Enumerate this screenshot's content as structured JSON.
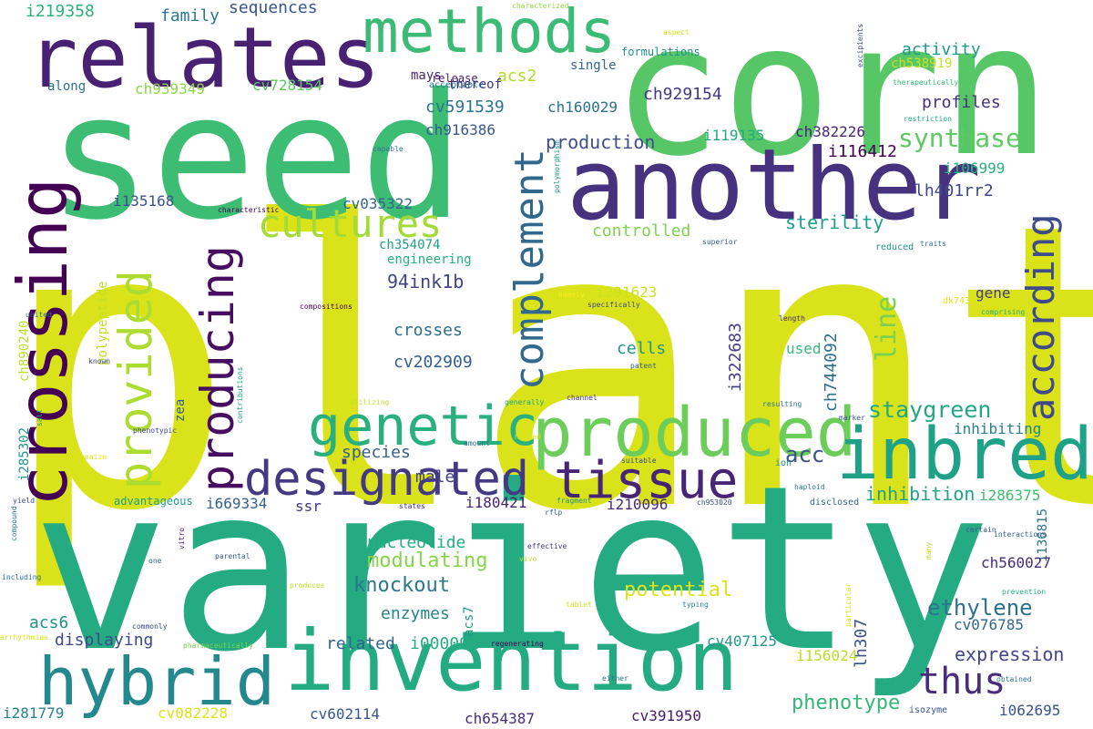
{
  "words": [
    {
      "text": "plant",
      "color": "#dae319"
    },
    {
      "text": "variety",
      "color": "#25ab82"
    },
    {
      "text": "seed",
      "color": "#3dbc74"
    },
    {
      "text": "corn",
      "color": "#56c667"
    },
    {
      "text": "relates",
      "color": "#482173"
    },
    {
      "text": "another",
      "color": "#46327e"
    },
    {
      "text": "methods",
      "color": "#3bbb75"
    },
    {
      "text": "invention",
      "color": "#25ab82"
    },
    {
      "text": "produced",
      "color": "#6ccd5a"
    },
    {
      "text": "inbred",
      "color": "#1fa188"
    },
    {
      "text": "crossing",
      "color": "#440154"
    },
    {
      "text": "hybrid",
      "color": "#23898e"
    },
    {
      "text": "designated",
      "color": "#443a83"
    },
    {
      "text": "tissue",
      "color": "#482475"
    },
    {
      "text": "genetic",
      "color": "#2ab07f"
    },
    {
      "text": "producing",
      "color": "#470d60"
    },
    {
      "text": "provided",
      "color": "#addc30"
    },
    {
      "text": "complement",
      "color": "#31688e"
    },
    {
      "text": "according",
      "color": "#3e4a89"
    },
    {
      "text": "cultures",
      "color": "#a2da37"
    },
    {
      "text": "thus",
      "color": "#472d7b"
    },
    {
      "text": "line",
      "color": "#7ad151"
    },
    {
      "text": "ethylene",
      "color": "#2c728e"
    },
    {
      "text": "acc",
      "color": "#3b528b"
    },
    {
      "text": "synthase",
      "color": "#5ec962"
    },
    {
      "text": "staygreen",
      "color": "#22a884"
    },
    {
      "text": "phenotype",
      "color": "#35b779"
    },
    {
      "text": "potential",
      "color": "#dde318"
    },
    {
      "text": "modulating",
      "color": "#86d549"
    },
    {
      "text": "knockout",
      "color": "#2a788e"
    },
    {
      "text": "expression",
      "color": "#414487"
    },
    {
      "text": "inhibition",
      "color": "#20a386"
    },
    {
      "text": "production",
      "color": "#3e4c8a"
    },
    {
      "text": "94ink1b",
      "color": "#404588"
    },
    {
      "text": "sterility",
      "color": "#1f9e89"
    },
    {
      "text": "profiles",
      "color": "#46307e"
    },
    {
      "text": "ch744092",
      "color": "#2d708e"
    },
    {
      "text": "i322683",
      "color": "#433d84"
    },
    {
      "text": "lh307",
      "color": "#3b528b"
    },
    {
      "text": "i136815",
      "color": "#2c738e"
    },
    {
      "text": "ch890240",
      "color": "#bade28"
    },
    {
      "text": "i285302",
      "color": "#1f968b"
    },
    {
      "text": "polypeptide",
      "color": "#c2df23"
    },
    {
      "text": "acs7",
      "color": "#1f9a8a"
    },
    {
      "text": "lh401rr2",
      "color": "#3f4889"
    },
    {
      "text": "zea",
      "color": "#365c8d"
    },
    {
      "text": "nucleotide",
      "color": "#26ad81"
    },
    {
      "text": "controlled",
      "color": "#7fd34e"
    },
    {
      "text": "engineering",
      "color": "#29af7f"
    },
    {
      "text": "cells",
      "color": "#1f958b"
    },
    {
      "text": "crosses",
      "color": "#2f6c8e"
    },
    {
      "text": "cv202909",
      "color": "#355f8d"
    },
    {
      "text": "species",
      "color": "#355e8d"
    },
    {
      "text": "male",
      "color": "#424086"
    },
    {
      "text": "related",
      "color": "#32648e"
    },
    {
      "text": "i000091",
      "color": "#25ac82"
    },
    {
      "text": "enzymes",
      "color": "#25838e"
    },
    {
      "text": "displaying",
      "color": "#3e4989"
    },
    {
      "text": "acs6",
      "color": "#20928c"
    },
    {
      "text": "sequences",
      "color": "#39558c"
    },
    {
      "text": "family",
      "color": "#2a788e"
    },
    {
      "text": "i219358",
      "color": "#2db27d"
    },
    {
      "text": "mays",
      "color": "#482979"
    },
    {
      "text": "acs2",
      "color": "#b0dd2f"
    },
    {
      "text": "thereof",
      "color": "#463480"
    },
    {
      "text": "formulations",
      "color": "#21918c"
    },
    {
      "text": "ch929154",
      "color": "#453882"
    },
    {
      "text": "activity",
      "color": "#1f9a8a"
    },
    {
      "text": "ch538919",
      "color": "#c8e020"
    },
    {
      "text": "cv728154",
      "color": "#5ac864"
    },
    {
      "text": "ch939349",
      "color": "#8bd646"
    },
    {
      "text": "along",
      "color": "#2e6f8e"
    },
    {
      "text": "release",
      "color": "#481a6c"
    },
    {
      "text": "single",
      "color": "#31688e"
    },
    {
      "text": "cv591539",
      "color": "#2a768e"
    },
    {
      "text": "ch160029",
      "color": "#2c718e"
    },
    {
      "text": "ch916386",
      "color": "#38598c"
    },
    {
      "text": "i119135",
      "color": "#23a983"
    },
    {
      "text": "ch382226",
      "color": "#482677"
    },
    {
      "text": "i116412",
      "color": "#440154"
    },
    {
      "text": "i106999",
      "color": "#2db27d"
    },
    {
      "text": "i135168",
      "color": "#3b518b"
    },
    {
      "text": "cv035322",
      "color": "#32658e"
    },
    {
      "text": "ch354074",
      "color": "#1f9e89"
    },
    {
      "text": "i291623",
      "color": "#cae11f"
    },
    {
      "text": "gene",
      "color": "#433e85"
    },
    {
      "text": "used",
      "color": "#37b878"
    },
    {
      "text": "inhibiting",
      "color": "#26828e"
    },
    {
      "text": "i286375",
      "color": "#40bd72"
    },
    {
      "text": "ch560027",
      "color": "#472c7a"
    },
    {
      "text": "cv076785",
      "color": "#31678e"
    },
    {
      "text": "cv407125",
      "color": "#1f998a"
    },
    {
      "text": "i156024",
      "color": "#bade28"
    },
    {
      "text": "i062695",
      "color": "#3a538b"
    },
    {
      "text": "cv391950",
      "color": "#481c6e"
    },
    {
      "text": "ch654387",
      "color": "#472e7c"
    },
    {
      "text": "cv602114",
      "color": "#38588c"
    },
    {
      "text": "cv082228",
      "color": "#dde318"
    },
    {
      "text": "i281779",
      "color": "#25848e"
    },
    {
      "text": "i669334",
      "color": "#34618d"
    },
    {
      "text": "ssr",
      "color": "#453882"
    },
    {
      "text": "i180421",
      "color": "#482173"
    },
    {
      "text": "i210096",
      "color": "#482878"
    },
    {
      "text": "advantageous",
      "color": "#1f9f88"
    },
    {
      "text": "characterized",
      "color": "#93d741"
    },
    {
      "text": "aspect",
      "color": "#d8e219"
    },
    {
      "text": "acceptable",
      "color": "#2b758e"
    },
    {
      "text": "therapeutically",
      "color": "#35b779"
    },
    {
      "text": "excipients",
      "color": "#3b528b"
    },
    {
      "text": "restriction",
      "color": "#22a785"
    },
    {
      "text": "capable",
      "color": "#2a778e"
    },
    {
      "text": "characteristic",
      "color": "#440154"
    },
    {
      "text": "polymorphism",
      "color": "#1f968b"
    },
    {
      "text": "superior",
      "color": "#34618d"
    },
    {
      "text": "reduced",
      "color": "#21918c"
    },
    {
      "text": "traits",
      "color": "#2d708e"
    },
    {
      "text": "namely",
      "color": "#fde725"
    },
    {
      "text": "specifically",
      "color": "#3e4a89"
    },
    {
      "text": "dk743",
      "color": "#e2e418"
    },
    {
      "text": "compositions",
      "color": "#440154"
    },
    {
      "text": "united",
      "color": "#2c738e"
    },
    {
      "text": "length",
      "color": "#482878"
    },
    {
      "text": "comprising",
      "color": "#29af7f"
    },
    {
      "text": "known",
      "color": "#3f4788"
    },
    {
      "text": "patent",
      "color": "#39568c"
    },
    {
      "text": "utilizing",
      "color": "#c2df23"
    },
    {
      "text": "generally",
      "color": "#20a386"
    },
    {
      "text": "channel",
      "color": "#453781"
    },
    {
      "text": "resulting",
      "color": "#2a788e"
    },
    {
      "text": "marker",
      "color": "#3b528b"
    },
    {
      "text": "salt",
      "color": "#1e9b8a"
    },
    {
      "text": "phenotypic",
      "color": "#404688"
    },
    {
      "text": "contributions",
      "color": "#22a884"
    },
    {
      "text": "amount",
      "color": "#2d708e"
    },
    {
      "text": "housed",
      "color": "#d8e219"
    },
    {
      "text": "maize",
      "color": "#e2e418"
    },
    {
      "text": "suitable",
      "color": "#3b528b"
    },
    {
      "text": "ion",
      "color": "#21918c"
    },
    {
      "text": "haploid",
      "color": "#287c8e"
    },
    {
      "text": "disclosed",
      "color": "#31688e"
    },
    {
      "text": "yield",
      "color": "#3e4a89"
    },
    {
      "text": "states",
      "color": "#46307e"
    },
    {
      "text": "fragment",
      "color": "#1f968b"
    },
    {
      "text": "ch953020",
      "color": "#3b528b"
    },
    {
      "text": "rflp",
      "color": "#365c8d"
    },
    {
      "text": "certain",
      "color": "#39568c"
    },
    {
      "text": "interactions",
      "color": "#34618d"
    },
    {
      "text": "compound",
      "color": "#287c8e"
    },
    {
      "text": "vitro",
      "color": "#482475"
    },
    {
      "text": "effective",
      "color": "#453781"
    },
    {
      "text": "vivo",
      "color": "#c2df23"
    },
    {
      "text": "one",
      "color": "#31688e"
    },
    {
      "text": "parental",
      "color": "#38588c"
    },
    {
      "text": "including",
      "color": "#2d708e"
    },
    {
      "text": "produces",
      "color": "#c2df23"
    },
    {
      "text": "many",
      "color": "#bade28"
    },
    {
      "text": "prevention",
      "color": "#29af7f"
    },
    {
      "text": "arrhythmias",
      "color": "#d8e219"
    },
    {
      "text": "commonly",
      "color": "#3e4a89"
    },
    {
      "text": "tablet",
      "color": "#d0e11c"
    },
    {
      "text": "typing",
      "color": "#26828e"
    },
    {
      "text": "particular",
      "color": "#d8e219"
    },
    {
      "text": "pharmaceutically",
      "color": "#7ad151"
    },
    {
      "text": "regenerating",
      "color": "#440154"
    },
    {
      "text": "either",
      "color": "#2c728e"
    },
    {
      "text": "obtained",
      "color": "#2a788e"
    },
    {
      "text": "isozyme",
      "color": "#3b528b"
    }
  ]
}
